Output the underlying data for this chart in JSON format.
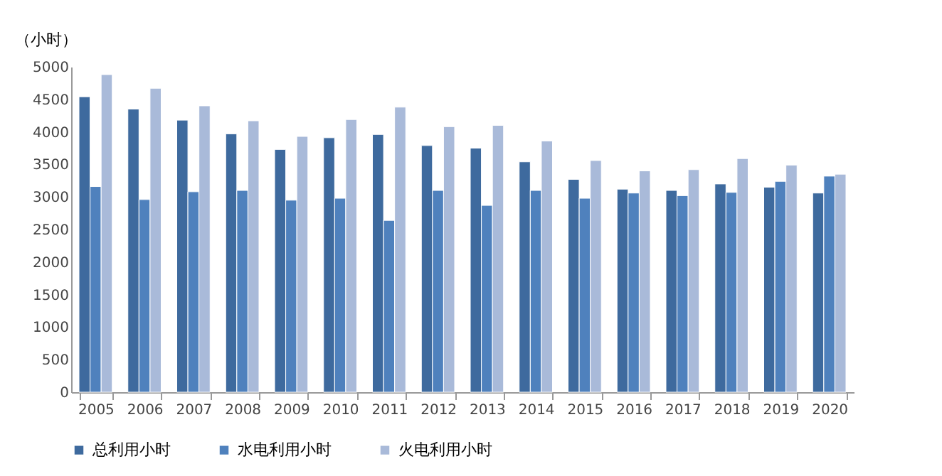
{
  "chart_data": {
    "type": "bar",
    "ylabel": "（小时）",
    "categories": [
      "2005",
      "2006",
      "2007",
      "2008",
      "2009",
      "2010",
      "2011",
      "2012",
      "2013",
      "2014",
      "2015",
      "2016",
      "2017",
      "2018",
      "2019",
      "2020"
    ],
    "series": [
      {
        "name": "总利用小时",
        "color": "#3e6a9e",
        "values": [
          4540,
          4350,
          4180,
          3970,
          3730,
          3910,
          3960,
          3790,
          3750,
          3540,
          3270,
          3120,
          3100,
          3200,
          3150,
          3060
        ]
      },
      {
        "name": "水电利用小时",
        "color": "#4f81bd",
        "values": [
          3160,
          2960,
          3080,
          3100,
          2950,
          2980,
          2640,
          3100,
          2870,
          3100,
          2980,
          3060,
          3020,
          3070,
          3240,
          3320
        ]
      },
      {
        "name": "火电利用小时",
        "color": "#a9bad9",
        "values": [
          4880,
          4670,
          4400,
          4170,
          3930,
          4190,
          4380,
          4080,
          4100,
          3860,
          3560,
          3400,
          3420,
          3590,
          3490,
          3350
        ]
      }
    ],
    "ylim": [
      0,
      5000
    ],
    "yticks": [
      0,
      500,
      1000,
      1500,
      2000,
      2500,
      3000,
      3500,
      4000,
      4500,
      5000
    ],
    "grid": false,
    "legend": "bottom"
  }
}
